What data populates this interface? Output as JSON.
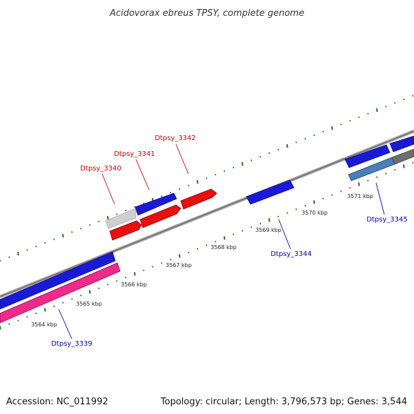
{
  "title": "Acidovorax ebreus TPSY, complete genome",
  "footer": {
    "accession": "Accession: NC_011992",
    "summary": "Topology: circular; Length: 3,796,573 bp; Genes: 3,544"
  },
  "scale_labels": [
    "3564 kbp",
    "3565 kbp",
    "3566 kbp",
    "3567 kbp",
    "3568 kbp",
    "3569 kbp",
    "3570 kbp",
    "3571 kbp"
  ],
  "gene_labels": [
    {
      "text": "Dtpsy_3340",
      "strand": "forward"
    },
    {
      "text": "Dtpsy_3341",
      "strand": "forward"
    },
    {
      "text": "Dtpsy_3342",
      "strand": "forward"
    },
    {
      "text": "Dtpsy_3339",
      "strand": "reverse"
    },
    {
      "text": "Dtpsy_3344",
      "strand": "reverse"
    },
    {
      "text": "Dtpsy_3345",
      "strand": "reverse"
    }
  ],
  "colors": {
    "forward_label": "#cc0000",
    "reverse_label": "#0000aa",
    "backbone": "#8a8a8a",
    "tick": "#1f6b1f",
    "blue": "#1a1ad6",
    "red": "#e80f0f",
    "pink": "#ee2a8a",
    "steel": "#4a7fb8",
    "grey": "#cfcfcf",
    "dark_grey": "#6e6e6e"
  }
}
